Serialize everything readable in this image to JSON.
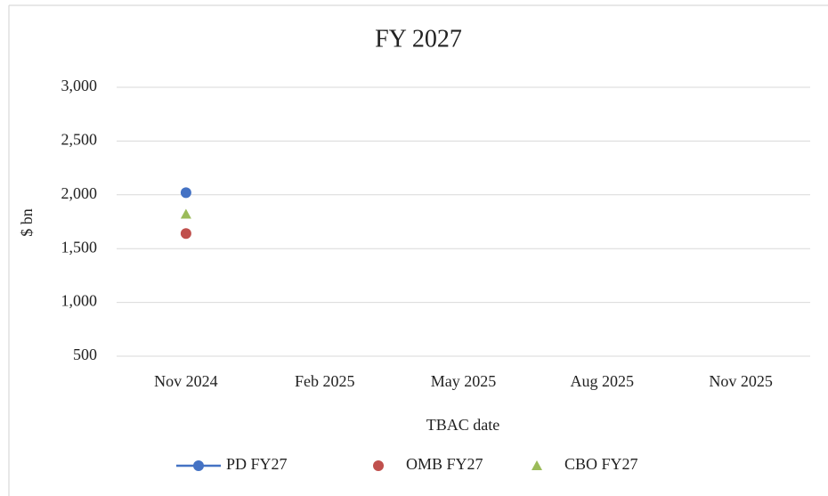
{
  "chart_data": {
    "type": "line",
    "title": "FY 2027",
    "y_label": "$ bn",
    "x_label": "TBAC date",
    "categories": [
      "Nov 2024",
      "Feb 2025",
      "May 2025",
      "Aug 2025",
      "Nov 2025"
    ],
    "series": [
      {
        "name": "PD FY27",
        "color": "#4472c4",
        "marker": "circle",
        "show_line": true,
        "values": [
          2020,
          null,
          null,
          null,
          null
        ]
      },
      {
        "name": "OMB FY27",
        "color": "#c0504d",
        "marker": "circle",
        "show_line": false,
        "values": [
          1640,
          null,
          null,
          null,
          null
        ]
      },
      {
        "name": "CBO FY27",
        "color": "#9bbb59",
        "marker": "triangle",
        "show_line": false,
        "values": [
          1820,
          null,
          null,
          null,
          null
        ]
      }
    ],
    "ylim": [
      500,
      3000
    ],
    "yticks": [
      500,
      {
        "value": 1000,
        "label": "1,000"
      },
      {
        "value": 1500,
        "label": "1,500"
      },
      {
        "value": 2000,
        "label": "2,000"
      },
      {
        "value": 2500,
        "label": "2,500"
      },
      {
        "value": 3000,
        "label": "3,000"
      }
    ],
    "grid": true
  }
}
